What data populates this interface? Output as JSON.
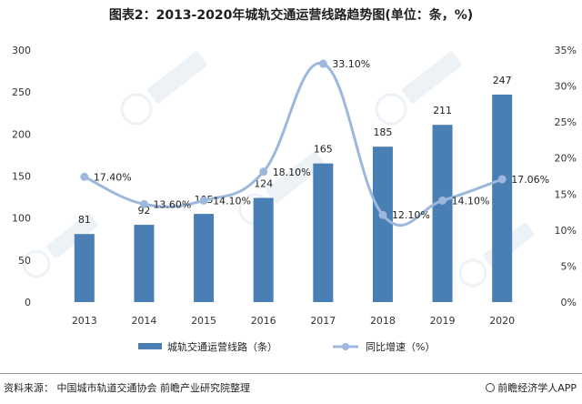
{
  "title": "图表2：2013-2020年城轨交通运营线路趋势图(单位：条，%)",
  "footer": {
    "source": "资料来源：  中国城市轨道交通协会 前瞻产业研究院整理",
    "brand": "前瞻经济学人APP"
  },
  "colors": {
    "bar": "#4a7fb5",
    "line": "#9db8dc",
    "axis_text": "#333333"
  },
  "chart_data": {
    "type": "bar",
    "categories": [
      "2013",
      "2014",
      "2015",
      "2016",
      "2017",
      "2018",
      "2019",
      "2020"
    ],
    "series": [
      {
        "name": "城轨交通运营线路（条）",
        "type": "bar",
        "axis": "left",
        "values": [
          81,
          92,
          105,
          124,
          165,
          185,
          211,
          247
        ],
        "labels": [
          "81",
          "92",
          "105",
          "124",
          "165",
          "185",
          "211",
          "247"
        ]
      },
      {
        "name": "同比增速（%）",
        "type": "line",
        "axis": "right",
        "values": [
          17.4,
          13.6,
          14.1,
          18.1,
          33.1,
          12.1,
          14.1,
          17.06
        ],
        "labels": [
          "17.40%",
          "13.60%",
          "14.10%",
          "18.10%",
          "33.10%",
          "12.10%",
          "14.10%",
          "17.06%"
        ]
      }
    ],
    "y_left": {
      "lim": [
        0,
        300
      ],
      "ticks": [
        "0",
        "50",
        "100",
        "150",
        "200",
        "250",
        "300"
      ]
    },
    "y_right": {
      "lim": [
        0,
        35
      ],
      "ticks": [
        "0%",
        "5%",
        "10%",
        "15%",
        "20%",
        "25%",
        "30%",
        "35%"
      ]
    },
    "legend": {
      "position": "bottom",
      "items": [
        "城轨交通运营线路（条）",
        "同比增速（%）"
      ]
    },
    "grid": false
  }
}
